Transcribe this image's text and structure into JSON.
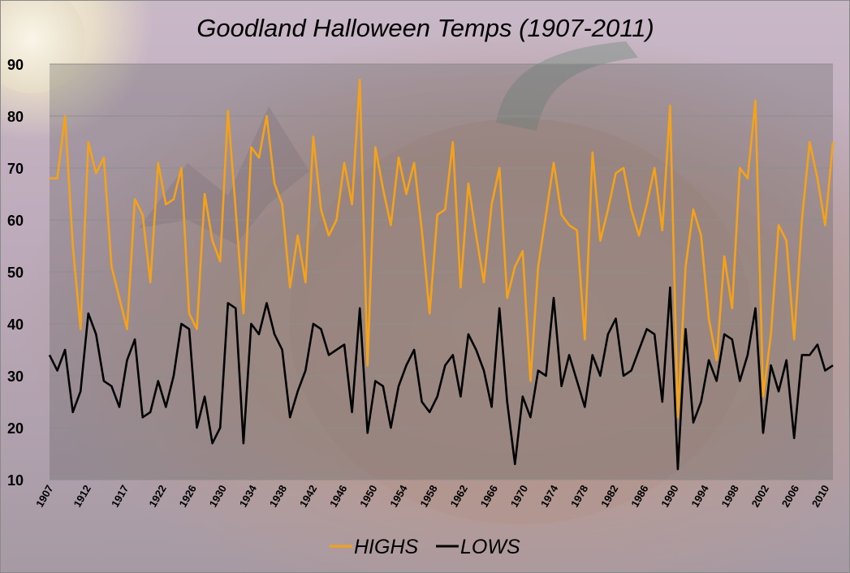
{
  "chart_data": {
    "type": "line",
    "title": "Goodland Halloween Temps (1907-2011)",
    "xlabel": "",
    "ylabel": "",
    "x_start": 1907,
    "x_end": 2011,
    "ylim": [
      10,
      90
    ],
    "yticks": [
      "10",
      "20",
      "30",
      "40",
      "50",
      "60",
      "70",
      "80",
      "90"
    ],
    "xticks": [
      "1907",
      "1912",
      "1917",
      "1922",
      "1926",
      "1930",
      "1934",
      "1938",
      "1942",
      "1946",
      "1950",
      "1954",
      "1958",
      "1962",
      "1966",
      "1970",
      "1974",
      "1978",
      "1982",
      "1986",
      "1990",
      "1994",
      "1998",
      "2002",
      "2006",
      "2010"
    ],
    "grid": true,
    "legend_position": "bottom",
    "series": [
      {
        "name": "HIGHS",
        "color": "#f5a21b",
        "values": [
          68,
          68,
          80,
          55,
          39,
          75,
          69,
          72,
          51,
          45,
          39,
          64,
          61,
          48,
          71,
          63,
          64,
          70,
          42,
          39,
          65,
          56,
          52,
          81,
          62,
          42,
          74,
          72,
          80,
          67,
          63,
          47,
          57,
          48,
          76,
          62,
          57,
          60,
          71,
          63,
          87,
          32,
          74,
          66,
          59,
          72,
          65,
          71,
          58,
          42,
          61,
          62,
          75,
          47,
          67,
          57,
          48,
          63,
          70,
          45,
          51,
          54,
          29,
          51,
          61,
          71,
          61,
          59,
          58,
          37,
          73,
          56,
          62,
          69,
          70,
          62,
          57,
          63,
          70,
          58,
          82,
          22,
          51,
          62,
          57,
          41,
          33,
          53,
          43,
          70,
          68,
          83,
          26,
          38,
          59,
          56,
          37,
          60,
          75,
          68,
          59,
          75
        ]
      },
      {
        "name": "LOWS",
        "color": "#000000",
        "values": [
          34,
          31,
          35,
          23,
          27,
          42,
          38,
          29,
          28,
          24,
          33,
          37,
          22,
          23,
          29,
          24,
          30,
          40,
          39,
          20,
          26,
          17,
          20,
          44,
          43,
          17,
          40,
          38,
          44,
          38,
          35,
          22,
          27,
          31,
          40,
          39,
          34,
          35,
          36,
          23,
          43,
          19,
          29,
          28,
          20,
          28,
          32,
          35,
          25,
          23,
          26,
          32,
          34,
          26,
          38,
          35,
          31,
          24,
          43,
          25,
          13,
          26,
          22,
          31,
          30,
          45,
          28,
          34,
          29,
          24,
          34,
          30,
          38,
          41,
          30,
          31,
          35,
          39,
          38,
          25,
          47,
          12,
          39,
          21,
          25,
          33,
          29,
          38,
          37,
          29,
          34,
          43,
          19,
          32,
          27,
          33,
          18,
          34,
          34,
          36,
          31,
          32
        ]
      }
    ]
  }
}
